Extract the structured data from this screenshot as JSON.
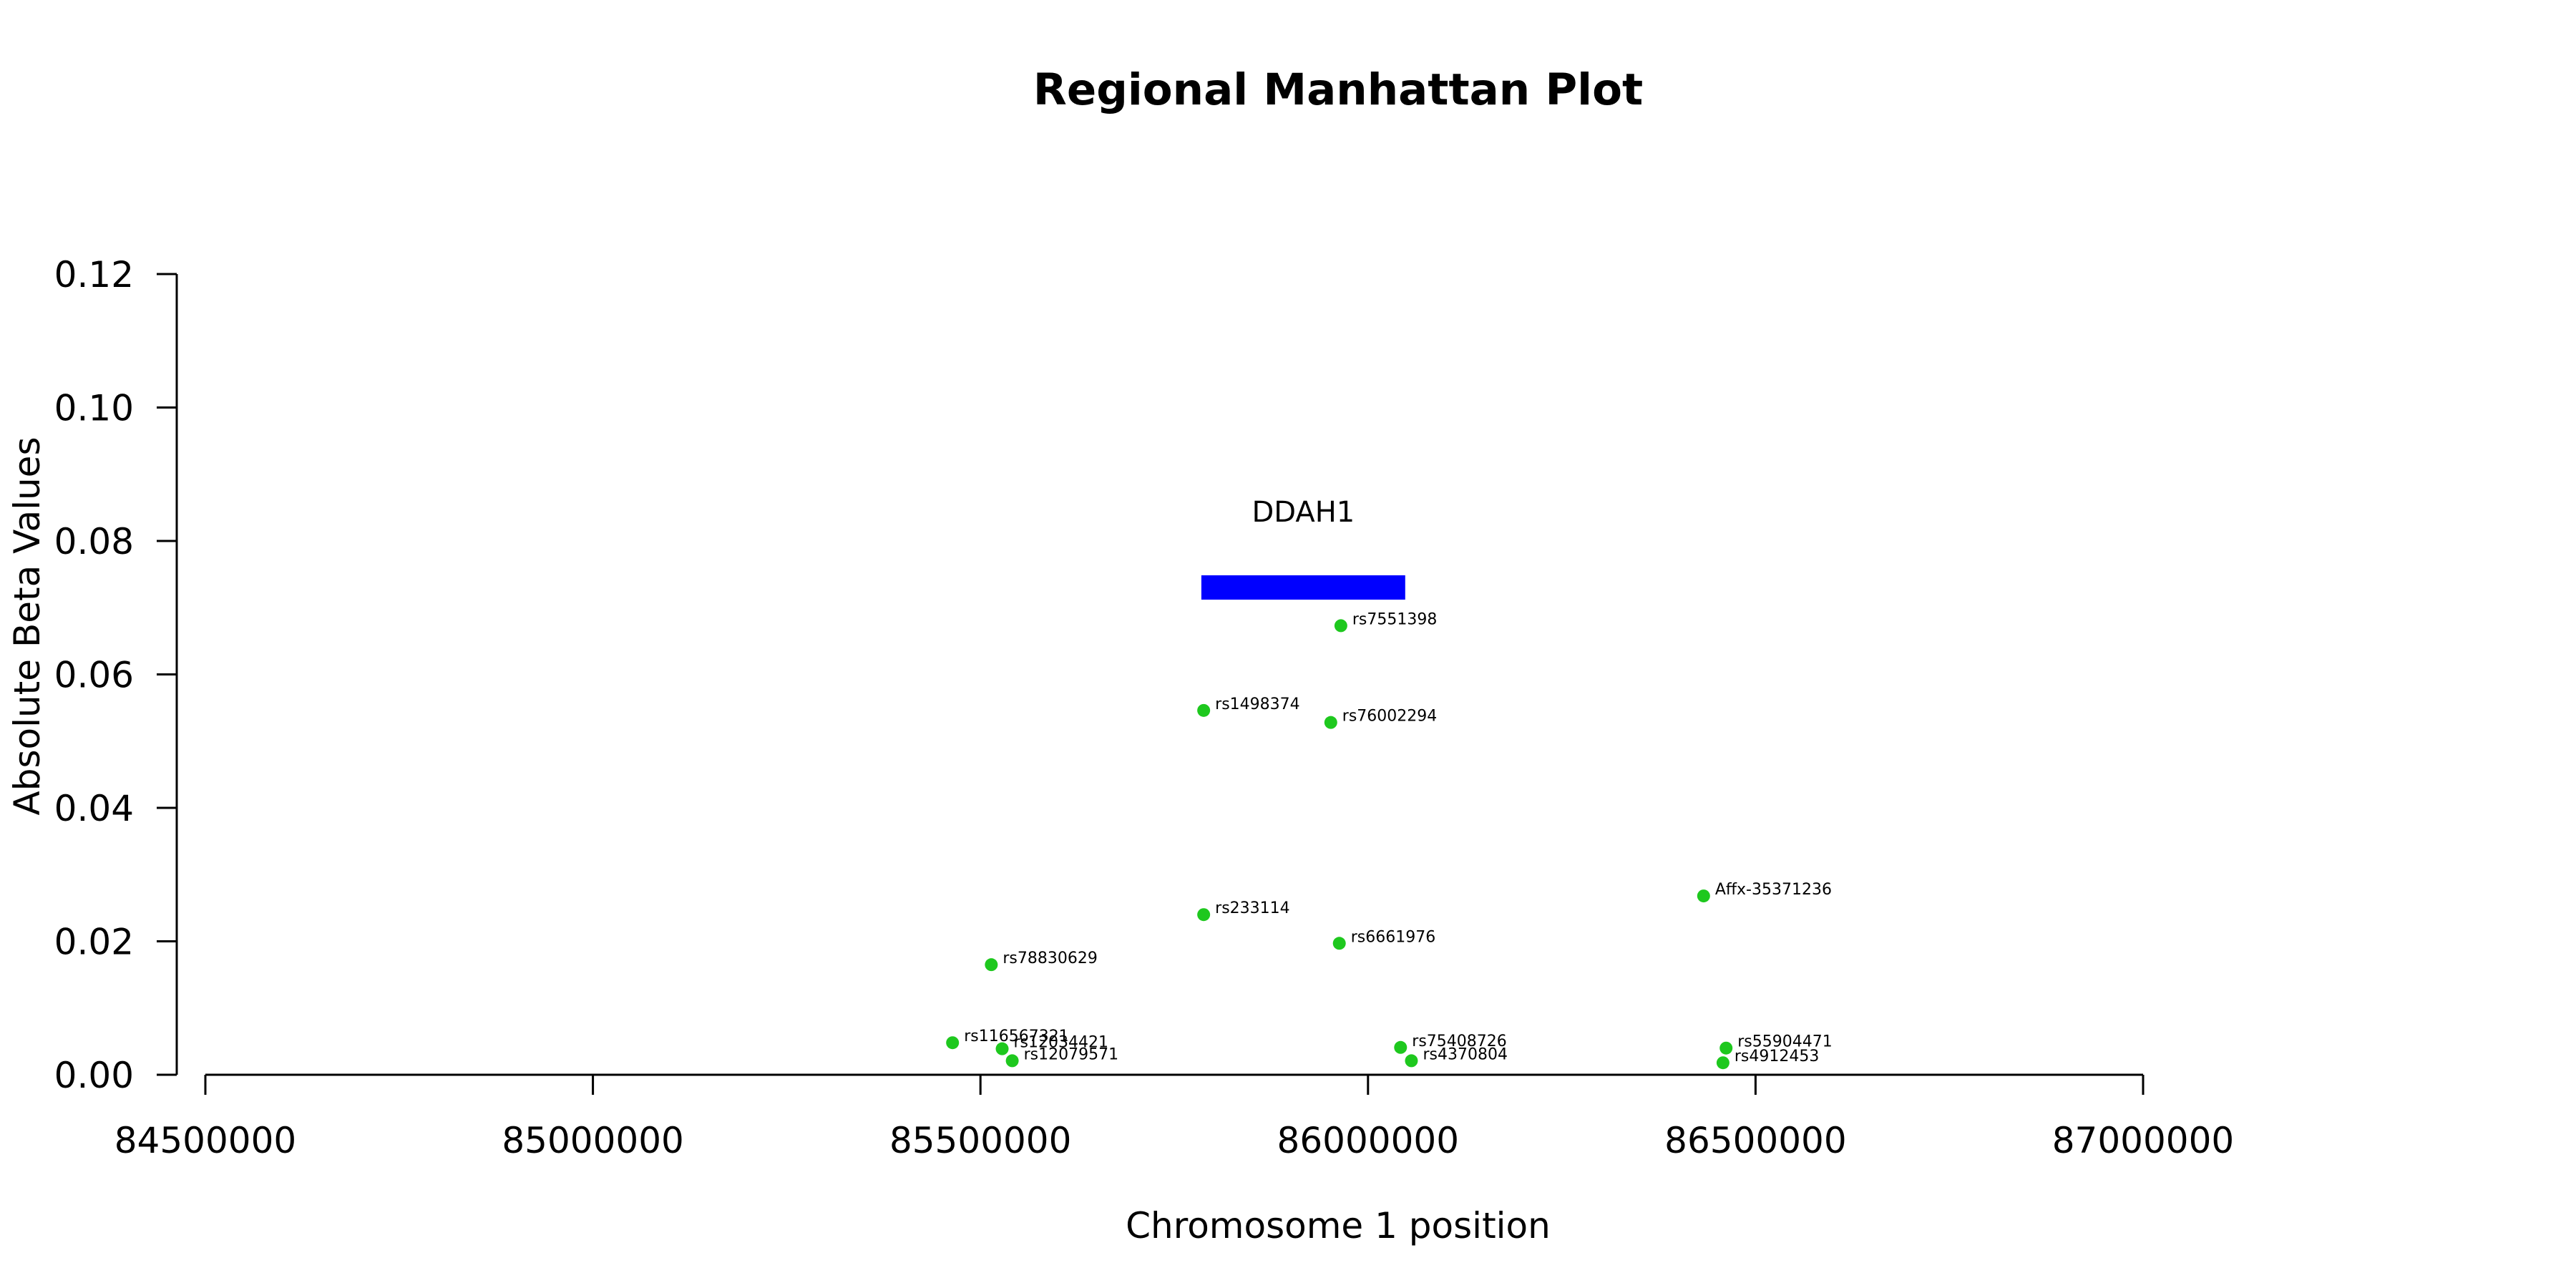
{
  "chart_data": {
    "type": "scatter",
    "title": "Regional Manhattan Plot",
    "xlabel": "Chromosome 1 position",
    "ylabel": "Absolute Beta Values",
    "xlim": [
      84500000,
      87000000
    ],
    "ylim": [
      0,
      0.12
    ],
    "x_ticks": [
      "84500000",
      "85000000",
      "85500000",
      "86000000",
      "86500000",
      "87000000"
    ],
    "y_ticks": [
      "0.00",
      "0.02",
      "0.04",
      "0.06",
      "0.08",
      "0.10",
      "0.12"
    ],
    "grid": false,
    "point_color": "#1ec81e",
    "points": [
      {
        "label": "rs7551398",
        "x": 85965000,
        "y": 0.0673
      },
      {
        "label": "rs1498374",
        "x": 85788000,
        "y": 0.0546
      },
      {
        "label": "rs76002294",
        "x": 85952000,
        "y": 0.0528
      },
      {
        "label": "rs233114",
        "x": 85788000,
        "y": 0.024
      },
      {
        "label": "Affx-35371236",
        "x": 86433000,
        "y": 0.0268
      },
      {
        "label": "rs6661976",
        "x": 85963000,
        "y": 0.0197
      },
      {
        "label": "rs78830629",
        "x": 85514000,
        "y": 0.0165
      },
      {
        "label": "rs116567321",
        "x": 85464000,
        "y": 0.0048
      },
      {
        "label": "rs12034421",
        "x": 85528000,
        "y": 0.0039
      },
      {
        "label": "rs12079571",
        "x": 85541000,
        "y": 0.0021
      },
      {
        "label": "rs75408726",
        "x": 86042000,
        "y": 0.0041
      },
      {
        "label": "rs4370804",
        "x": 86056000,
        "y": 0.0021
      },
      {
        "label": "rs55904471",
        "x": 86462000,
        "y": 0.004
      },
      {
        "label": "rs4912453",
        "x": 86458000,
        "y": 0.0018
      }
    ],
    "genes": [
      {
        "name": "DDAH1",
        "start": 85785000,
        "end": 86048000,
        "color": "#0000ff"
      }
    ]
  }
}
